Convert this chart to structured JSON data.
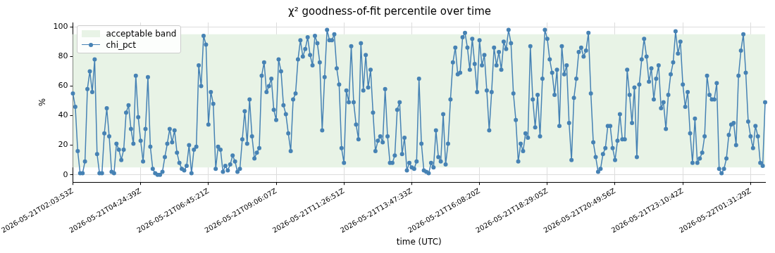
{
  "chart_data": {
    "type": "line",
    "title": "χ² goodness-of-fit percentile over time",
    "xlabel": "time (UTC)",
    "ylabel": "%",
    "categories": [
      "2026-05-21T02:03:53Z",
      null,
      null,
      null,
      null,
      null,
      null,
      null,
      null,
      null,
      null,
      null,
      null,
      null,
      null,
      null,
      null,
      null,
      null,
      null,
      null,
      null,
      null,
      null,
      null,
      null,
      null,
      null,
      "2026-05-21T04:24:39Z",
      null,
      null,
      null,
      null,
      null,
      null,
      null,
      null,
      null,
      null,
      null,
      null,
      null,
      null,
      null,
      null,
      null,
      null,
      null,
      null,
      null,
      null,
      null,
      null,
      null,
      null,
      null,
      "2026-05-21T06:45:21Z",
      null,
      null,
      null,
      null,
      null,
      null,
      null,
      null,
      null,
      null,
      null,
      null,
      null,
      null,
      null,
      null,
      null,
      null,
      null,
      null,
      null,
      null,
      null,
      null,
      null,
      null,
      null,
      "2026-05-21T09:06:07Z",
      null,
      null,
      null,
      null,
      null,
      null,
      null,
      null,
      null,
      null,
      null,
      null,
      null,
      null,
      null,
      null,
      null,
      null,
      null,
      null,
      null,
      null,
      null,
      null,
      null,
      null,
      null,
      "2026-05-21T11:26:51Z",
      null,
      null,
      null,
      null,
      null,
      null,
      null,
      null,
      null,
      null,
      null,
      null,
      null,
      null,
      null,
      null,
      null,
      null,
      null,
      null,
      null,
      null,
      null,
      null,
      null,
      null,
      null,
      "2026-05-21T13:47:33Z",
      null,
      null,
      null,
      null,
      null,
      null,
      null,
      null,
      null,
      null,
      null,
      null,
      null,
      null,
      null,
      null,
      null,
      null,
      null,
      null,
      null,
      null,
      null,
      null,
      null,
      null,
      null,
      "2026-05-21T16:08:20Z",
      null,
      null,
      null,
      null,
      null,
      null,
      null,
      null,
      null,
      null,
      null,
      null,
      null,
      null,
      null,
      null,
      null,
      null,
      null,
      null,
      null,
      null,
      null,
      null,
      null,
      null,
      null,
      "2026-05-21T18:29:05Z",
      null,
      null,
      null,
      null,
      null,
      null,
      null,
      null,
      null,
      null,
      null,
      null,
      null,
      null,
      null,
      null,
      null,
      null,
      null,
      null,
      null,
      null,
      null,
      null,
      null,
      null,
      null,
      "2026-05-21T20:49:56Z",
      null,
      null,
      null,
      null,
      null,
      null,
      null,
      null,
      null,
      null,
      null,
      null,
      null,
      null,
      null,
      null,
      null,
      null,
      null,
      null,
      null,
      null,
      null,
      null,
      null,
      null,
      null,
      "2026-05-21T23:10:42Z",
      null,
      null,
      null,
      null,
      null,
      null,
      null,
      null,
      null,
      null,
      null,
      null,
      null,
      null,
      null,
      null,
      null,
      null,
      null,
      null,
      null,
      null,
      null,
      null,
      null,
      null,
      null,
      "2026-05-22T01:31:29Z",
      null,
      null,
      null,
      null,
      null,
      null
    ],
    "series": [
      {
        "name": "chi_pct",
        "color": "#4682b4",
        "values": [
          55,
          46,
          16,
          1,
          1,
          9,
          58,
          70,
          56,
          78,
          14,
          1,
          1,
          28,
          45,
          26,
          2,
          1,
          21,
          17,
          10,
          17,
          42,
          47,
          31,
          21,
          67,
          39,
          23,
          9,
          31,
          66,
          19,
          4,
          1,
          0,
          0,
          2,
          12,
          21,
          31,
          22,
          30,
          15,
          8,
          4,
          3,
          6,
          20,
          1,
          17,
          19,
          74,
          60,
          94,
          88,
          34,
          56,
          48,
          4,
          19,
          17,
          2,
          6,
          3,
          7,
          13,
          9,
          2,
          4,
          24,
          43,
          21,
          51,
          26,
          11,
          15,
          18,
          67,
          76,
          56,
          60,
          65,
          44,
          37,
          78,
          70,
          47,
          41,
          28,
          16,
          51,
          55,
          78,
          91,
          80,
          85,
          93,
          81,
          74,
          94,
          89,
          76,
          30,
          66,
          98,
          91,
          91,
          95,
          72,
          61,
          18,
          8,
          57,
          49,
          87,
          49,
          34,
          24,
          89,
          57,
          81,
          59,
          71,
          42,
          16,
          23,
          26,
          22,
          58,
          26,
          8,
          8,
          13,
          44,
          49,
          14,
          25,
          3,
          8,
          5,
          4,
          9,
          65,
          21,
          3,
          2,
          1,
          8,
          5,
          30,
          12,
          9,
          41,
          7,
          21,
          51,
          76,
          86,
          68,
          69,
          93,
          96,
          86,
          71,
          92,
          75,
          56,
          91,
          74,
          81,
          57,
          30,
          56,
          86,
          74,
          83,
          71,
          90,
          85,
          98,
          89,
          55,
          37,
          9,
          21,
          16,
          28,
          25,
          87,
          51,
          32,
          54,
          26,
          65,
          98,
          92,
          78,
          69,
          54,
          71,
          33,
          87,
          68,
          74,
          35,
          10,
          52,
          65,
          83,
          86,
          80,
          84,
          96,
          55,
          22,
          12,
          2,
          4,
          14,
          18,
          33,
          33,
          18,
          10,
          23,
          41,
          24,
          24,
          71,
          54,
          35,
          59,
          12,
          61,
          78,
          92,
          80,
          63,
          72,
          51,
          65,
          74,
          45,
          49,
          31,
          54,
          68,
          76,
          97,
          82,
          90,
          61,
          46,
          56,
          28,
          8,
          38,
          8,
          11,
          15,
          26,
          67,
          54,
          51,
          51,
          62,
          4,
          1,
          4,
          11,
          27,
          34,
          35,
          20,
          67,
          84,
          95,
          69,
          36,
          26,
          18,
          33,
          26,
          8,
          6,
          49
        ]
      }
    ],
    "bands": [
      {
        "axis": "y",
        "from": 5,
        "to": 95,
        "label": "acceptable band",
        "color": "#e8f3e6"
      }
    ],
    "ylim": [
      -5,
      103
    ],
    "yticks": [
      0,
      20,
      40,
      60,
      80,
      100
    ],
    "grid": true,
    "legend": "top left",
    "marker": "circle",
    "line_style": "solid"
  }
}
